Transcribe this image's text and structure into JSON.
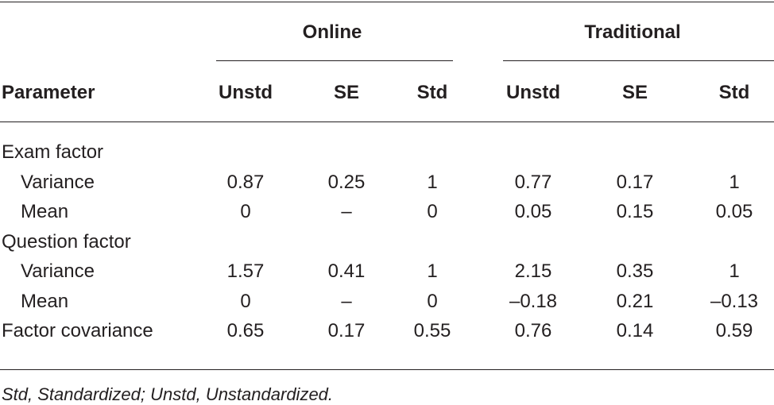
{
  "table": {
    "group_headers": [
      "Online",
      "Traditional"
    ],
    "column_headers": [
      "Parameter",
      "Unstd",
      "SE",
      "Std",
      "Unstd",
      "SE",
      "Std"
    ],
    "rows": [
      {
        "label": "Exam factor",
        "indent": false,
        "cells": [
          "",
          "",
          "",
          "",
          "",
          ""
        ]
      },
      {
        "label": "Variance",
        "indent": true,
        "cells": [
          "0.87",
          "0.25",
          "1",
          "0.77",
          "0.17",
          "1"
        ]
      },
      {
        "label": "Mean",
        "indent": true,
        "cells": [
          "0",
          "–",
          "0",
          "0.05",
          "0.15",
          "0.05"
        ]
      },
      {
        "label": "Question factor",
        "indent": false,
        "cells": [
          "",
          "",
          "",
          "",
          "",
          ""
        ]
      },
      {
        "label": "Variance",
        "indent": true,
        "cells": [
          "1.57",
          "0.41",
          "1",
          "2.15",
          "0.35",
          "1"
        ]
      },
      {
        "label": "Mean",
        "indent": true,
        "cells": [
          "0",
          "–",
          "0",
          "–0.18",
          "0.21",
          "–0.13"
        ]
      },
      {
        "label": "Factor covariance",
        "indent": false,
        "cells": [
          "0.65",
          "0.17",
          "0.55",
          "0.76",
          "0.14",
          "0.59"
        ]
      }
    ]
  },
  "footnote": "Std, Standardized; Unstd, Unstandardized."
}
